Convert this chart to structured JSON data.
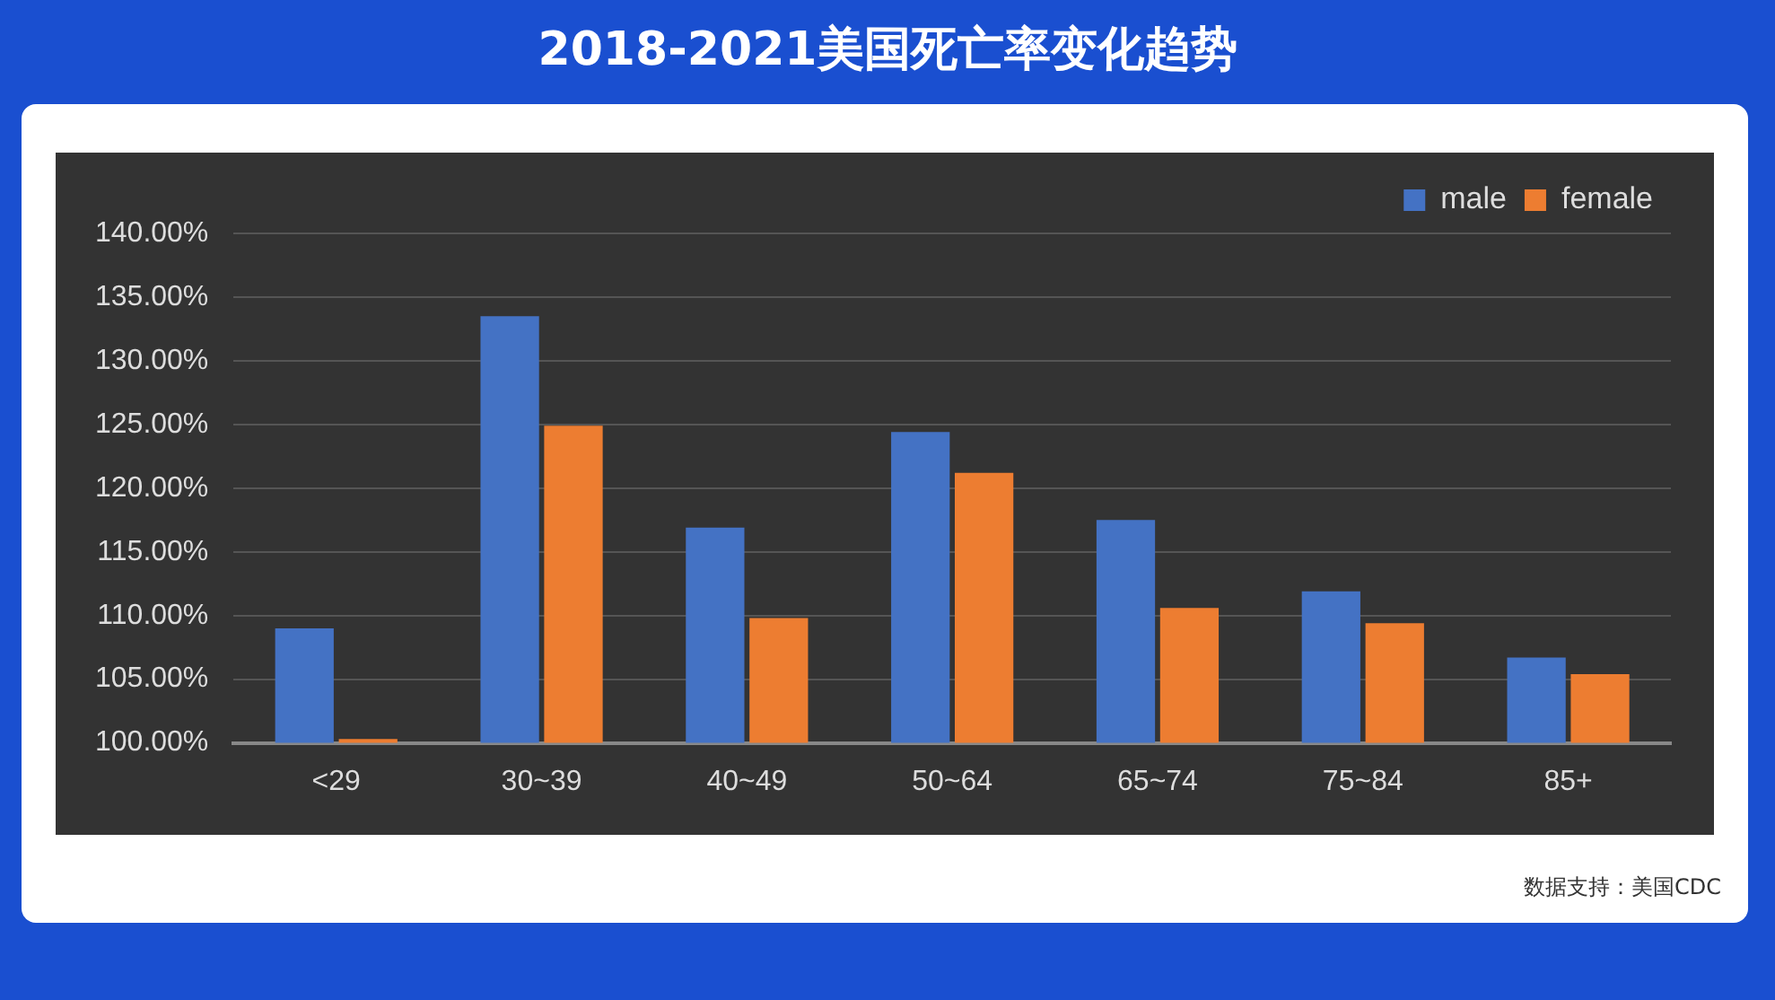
{
  "chart_data": {
    "type": "bar",
    "title": "2018-2021美国死亡率变化趋势",
    "categories": [
      "<29",
      "30~39",
      "40~49",
      "50~64",
      "65~74",
      "75~84",
      "85+"
    ],
    "series": [
      {
        "name": "male",
        "color": "#4472c4",
        "values": [
          109.0,
          133.5,
          116.9,
          124.4,
          117.5,
          111.9,
          106.7
        ]
      },
      {
        "name": "female",
        "color": "#ed7d31",
        "values": [
          100.3,
          124.9,
          109.8,
          121.2,
          110.6,
          109.4,
          105.4
        ]
      }
    ],
    "ylim": [
      100,
      140
    ],
    "yticks": [
      {
        "value": 100,
        "label": "100.00%"
      },
      {
        "value": 105,
        "label": "105.00%"
      },
      {
        "value": 110,
        "label": "110.00%"
      },
      {
        "value": 115,
        "label": "115.00%"
      },
      {
        "value": 120,
        "label": "120.00%"
      },
      {
        "value": 125,
        "label": "125.00%"
      },
      {
        "value": 130,
        "label": "130.00%"
      },
      {
        "value": 135,
        "label": "135.00%"
      },
      {
        "value": 140,
        "label": "140.00%"
      }
    ],
    "grid": "y",
    "legend": "top right",
    "annotations": [
      "数据支持：美国CDC"
    ]
  }
}
